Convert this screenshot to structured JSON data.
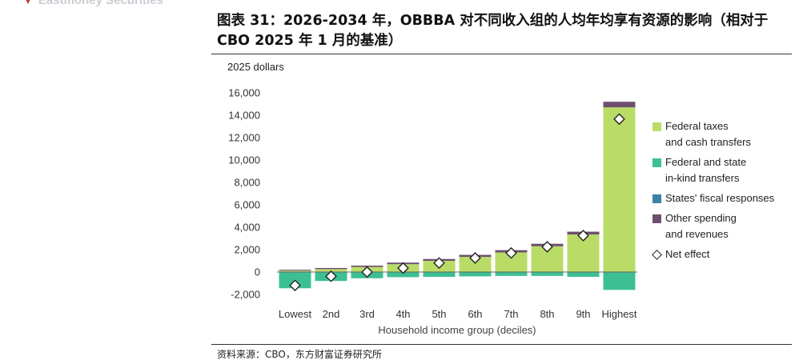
{
  "header": {
    "brand_text": "Eastmoney Securities",
    "title": "图表 31：2026-2034 年，OBBBA 对不同收入组的人均年均享有资源的影响（相对于 CBO 2025 年 1 月的基准）",
    "source": "资料来源：CBO，东方财富证券研究所"
  },
  "colors": {
    "federal_taxes": "#b9dc67",
    "federal_state_inkind": "#3dbf94",
    "states_fiscal": "#3f80a6",
    "other_spending": "#6e4f6e",
    "net_effect": "#ffffff"
  },
  "chart_data": {
    "type": "bar",
    "stacked": true,
    "ylabel": "2025 dollars",
    "xlabel": "Household income group (deciles)",
    "ylim": [
      -2000,
      16000
    ],
    "yticks": [
      "16,000",
      "14,000",
      "12,000",
      "10,000",
      "8,000",
      "6,000",
      "4,000",
      "2,000",
      "0",
      "-2,000"
    ],
    "ytick_values": [
      16000,
      14000,
      12000,
      10000,
      8000,
      6000,
      4000,
      2000,
      0,
      -2000
    ],
    "categories": [
      "Lowest",
      "2nd",
      "3rd",
      "4th",
      "5th",
      "6th",
      "7th",
      "8th",
      "9th",
      "Highest"
    ],
    "series": [
      {
        "name": "Federal taxes and cash transfers",
        "legend_lines": [
          "Federal taxes",
          "and cash transfers"
        ],
        "values": [
          120,
          260,
          450,
          700,
          1000,
          1350,
          1750,
          2300,
          3350,
          14700
        ]
      },
      {
        "name": "Federal and state in-kind transfers",
        "legend_lines": [
          "Federal and state",
          "in-kind transfers"
        ],
        "values": [
          -1450,
          -800,
          -560,
          -460,
          -430,
          -390,
          -350,
          -350,
          -430,
          -1600
        ]
      },
      {
        "name": "States' fiscal responses",
        "legend_lines": [
          "States' fiscal responses"
        ],
        "values": [
          0,
          0,
          0,
          0,
          0,
          0,
          0,
          0,
          0,
          0
        ]
      },
      {
        "name": "Other spending and revenues",
        "legend_lines": [
          "Other spending",
          "and revenues"
        ],
        "values": [
          80,
          100,
          120,
          140,
          160,
          180,
          200,
          220,
          250,
          500
        ]
      }
    ],
    "net_effect": {
      "name": "Net effect",
      "values": [
        -1200,
        -380,
        0,
        350,
        800,
        1250,
        1700,
        2250,
        3250,
        13650
      ]
    },
    "grid": false,
    "legend_position": "right"
  }
}
